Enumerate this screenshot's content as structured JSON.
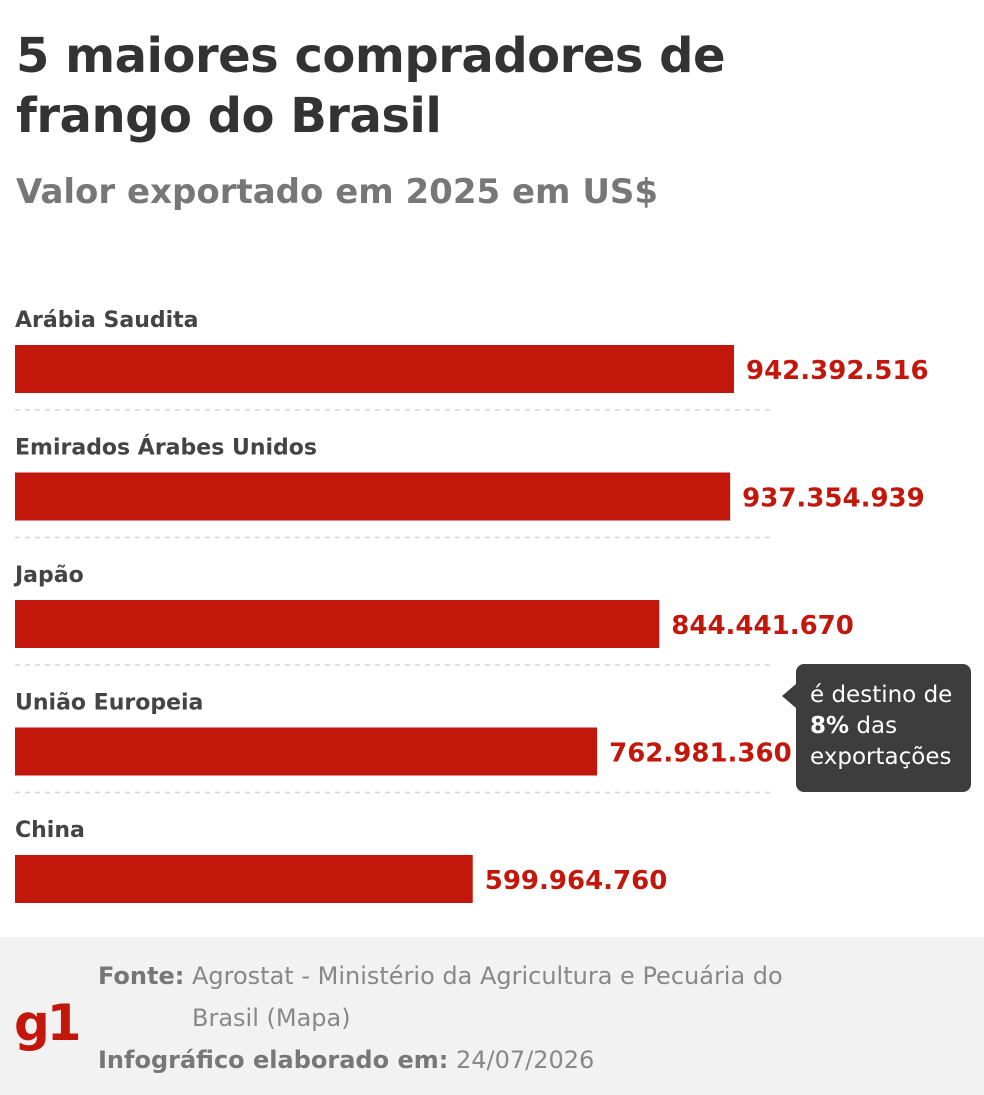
{
  "chart_data": {
    "type": "bar",
    "orientation": "horizontal",
    "title": "5 maiores compradores de frango do Brasil",
    "subtitle": "Valor exportado em 2025 em US$",
    "categories": [
      "Arábia Saudita",
      "Emirados Árabes Unidos",
      "Japão",
      "União Europeia",
      "China"
    ],
    "values": [
      942392516,
      937354939,
      844441670,
      762981360,
      599964760
    ],
    "value_labels": [
      "942.392.516",
      "937.354.939",
      "844.441.670",
      "762.981.360",
      "599.964.760"
    ],
    "xlim": [
      0,
      942392516
    ],
    "bar_color": "#c4170c",
    "grid": false,
    "annotation": {
      "category": "União Europeia",
      "text_before": "é destino de ",
      "text_bold": "8%",
      "text_after": " das exportações"
    }
  },
  "footer": {
    "logo": "g1",
    "source_label": "Fonte:",
    "source_text": "Agrostat - Ministério da Agricultura e Pecuária do Brasil (Mapa)",
    "date_label": "Infográfico elaborado em:",
    "date_value": "24/07/2026"
  },
  "colors": {
    "accent": "#c4170c",
    "title": "#333333",
    "subtitle": "#777777",
    "callout_bg": "#3d3d3d",
    "footer_bg": "#f2f2f2"
  }
}
